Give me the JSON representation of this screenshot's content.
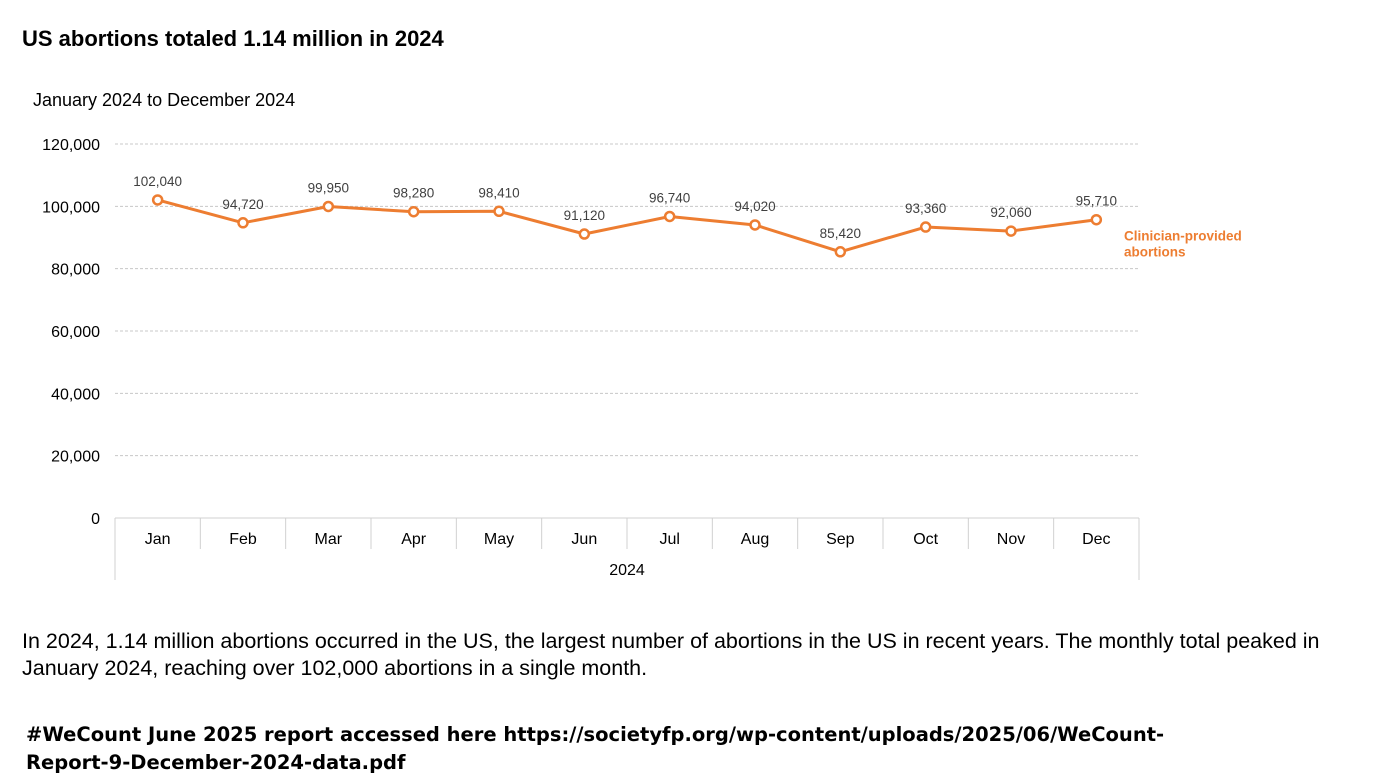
{
  "title": "US abortions totaled 1.14 million in 2024",
  "subtitle": "January 2024 to December 2024",
  "caption": "In 2024, 1.14 million abortions occurred in the US, the largest number of abortions in the US in recent years. The monthly total peaked in January 2024, reaching over 102,000 abortions in a single month.",
  "source": "#WeCount June 2025 report accessed here https://societyfp.org/wp-content/uploads/2025/06/WeCount-Report-9-December-2024-data.pdf",
  "chart_data": {
    "type": "line",
    "categories": [
      "Jan",
      "Feb",
      "Mar",
      "Apr",
      "May",
      "Jun",
      "Jul",
      "Aug",
      "Sep",
      "Oct",
      "Nov",
      "Dec"
    ],
    "xlabel": "2024",
    "ylabel": "",
    "ylim": [
      0,
      120000
    ],
    "yticks": [
      0,
      20000,
      40000,
      60000,
      80000,
      100000,
      120000
    ],
    "ytick_labels": [
      "0",
      "20,000",
      "40,000",
      "60,000",
      "80,000",
      "100,000",
      "120,000"
    ],
    "grid": true,
    "series": [
      {
        "name": "Clinician-provided abortions",
        "color": "#ED7D31",
        "values": [
          102040,
          94720,
          99950,
          98280,
          98410,
          91120,
          96740,
          94020,
          85420,
          93360,
          92060,
          95710
        ],
        "labels": [
          "102,040",
          "94,720",
          "99,950",
          "98,280",
          "98,410",
          "91,120",
          "96,740",
          "94,020",
          "85,420",
          "93,360",
          "92,060",
          "95,710"
        ]
      }
    ]
  }
}
